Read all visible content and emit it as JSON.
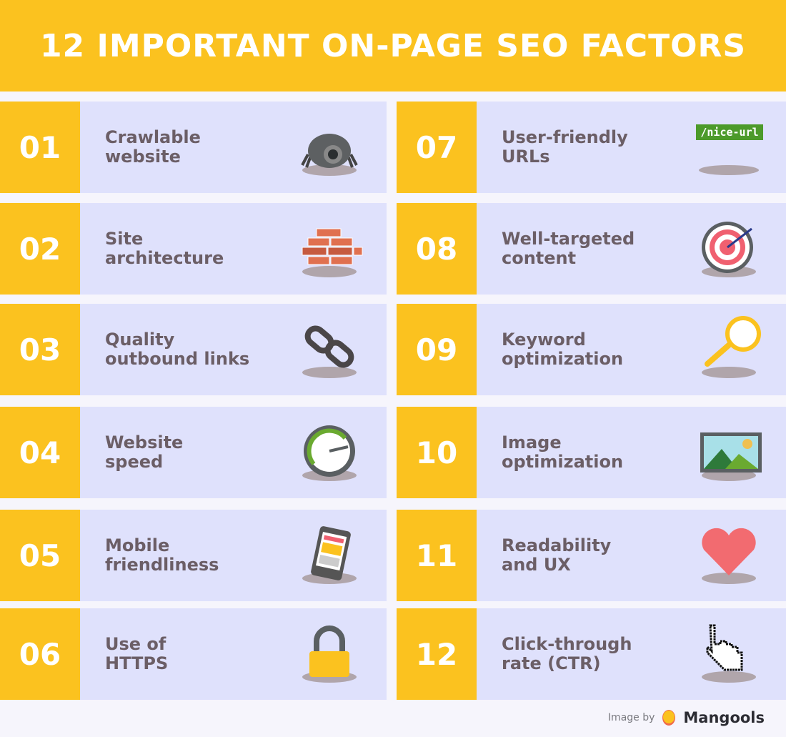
{
  "title": "12 IMPORTANT ON-PAGE SEO FACTORS",
  "colors": {
    "accent": "#fbc21f",
    "card": "#dfe1fc",
    "text": "#6b5e66",
    "background": "#f6f5fc"
  },
  "factors": [
    {
      "number": "01",
      "label": "Crawlable\nwebsite",
      "icon": "spider-robot-icon"
    },
    {
      "number": "02",
      "label": "Site\narchitecture",
      "icon": "brick-wall-icon"
    },
    {
      "number": "03",
      "label": "Quality\noutbound links",
      "icon": "chain-link-icon"
    },
    {
      "number": "04",
      "label": "Website\nspeed",
      "icon": "speedometer-icon"
    },
    {
      "number": "05",
      "label": "Mobile\nfriendliness",
      "icon": "smartphone-icon"
    },
    {
      "number": "06",
      "label": "Use of\nHTTPS",
      "icon": "padlock-icon"
    },
    {
      "number": "07",
      "label": "User-friendly\nURLs",
      "icon": "url-tag-icon",
      "icon_text": "/nice-url"
    },
    {
      "number": "08",
      "label": "Well-targeted\ncontent",
      "icon": "target-icon"
    },
    {
      "number": "09",
      "label": "Keyword\noptimization",
      "icon": "magnifier-icon"
    },
    {
      "number": "10",
      "label": "Image\noptimization",
      "icon": "image-icon"
    },
    {
      "number": "11",
      "label": "Readability\nand UX",
      "icon": "heart-icon"
    },
    {
      "number": "12",
      "label": "Click-through\nrate (CTR)",
      "icon": "pointer-hand-icon"
    }
  ],
  "footer": {
    "prefix": "Image by",
    "brand": "Mangools"
  }
}
